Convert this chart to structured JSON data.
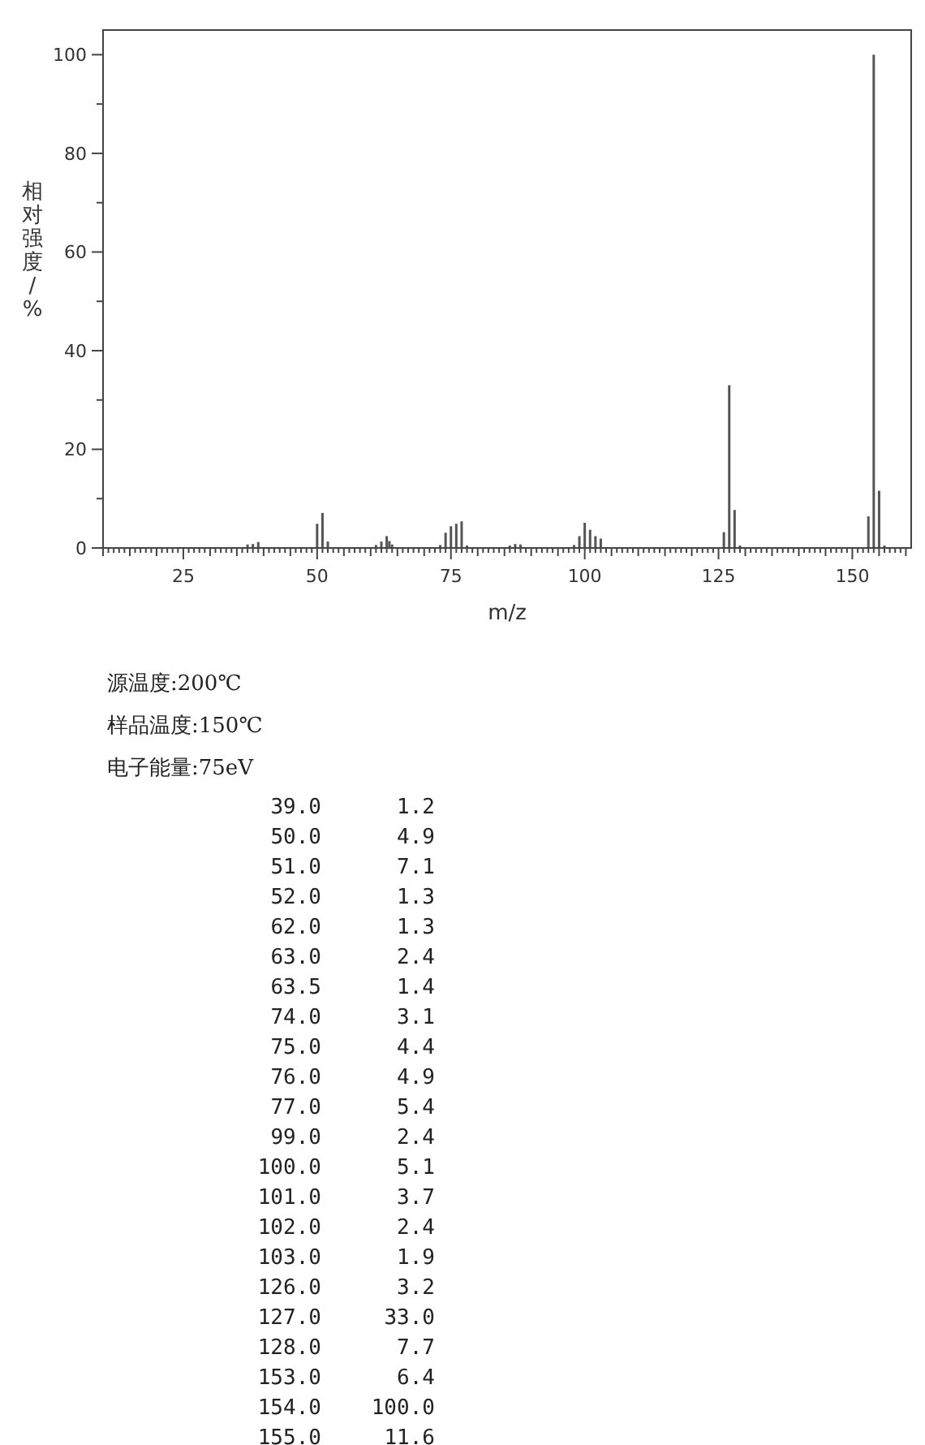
{
  "chart_data": {
    "type": "bar",
    "xlabel": "m/z",
    "ylabel": "相对强度/%",
    "xlim": [
      10,
      161
    ],
    "ylim": [
      0,
      105
    ],
    "xticks": [
      {
        "value": 10,
        "label": null
      },
      {
        "value": 11,
        "label": null
      },
      {
        "value": 12,
        "label": null
      },
      {
        "value": 13,
        "label": null
      },
      {
        "value": 14,
        "label": null
      },
      {
        "value": 15,
        "label": null
      },
      {
        "value": 16,
        "label": null
      },
      {
        "value": 17,
        "label": null
      },
      {
        "value": 18,
        "label": null
      },
      {
        "value": 19,
        "label": null
      },
      {
        "value": 20,
        "label": null
      },
      {
        "value": 21,
        "label": null
      },
      {
        "value": 22,
        "label": null
      },
      {
        "value": 23,
        "label": null
      },
      {
        "value": 24,
        "label": null
      },
      25,
      {
        "value": 26,
        "label": null
      },
      {
        "value": 27,
        "label": null
      },
      {
        "value": 28,
        "label": null
      },
      {
        "value": 29,
        "label": null
      },
      {
        "value": 30,
        "label": null
      },
      {
        "value": 31,
        "label": null
      },
      {
        "value": 32,
        "label": null
      },
      {
        "value": 33,
        "label": null
      },
      {
        "value": 34,
        "label": null
      },
      {
        "value": 35,
        "label": null
      },
      {
        "value": 36,
        "label": null
      },
      {
        "value": 37,
        "label": null
      },
      {
        "value": 38,
        "label": null
      },
      {
        "value": 39,
        "label": null
      },
      {
        "value": 40,
        "label": null
      },
      {
        "value": 41,
        "label": null
      },
      {
        "value": 42,
        "label": null
      },
      {
        "value": 43,
        "label": null
      },
      {
        "value": 44,
        "label": null
      },
      {
        "value": 45,
        "label": null
      },
      {
        "value": 46,
        "label": null
      },
      {
        "value": 47,
        "label": null
      },
      {
        "value": 48,
        "label": null
      },
      {
        "value": 49,
        "label": null
      },
      50,
      {
        "value": 51,
        "label": null
      },
      {
        "value": 52,
        "label": null
      },
      {
        "value": 53,
        "label": null
      },
      {
        "value": 54,
        "label": null
      },
      {
        "value": 55,
        "label": null
      },
      {
        "value": 56,
        "label": null
      },
      {
        "value": 57,
        "label": null
      },
      {
        "value": 58,
        "label": null
      },
      {
        "value": 59,
        "label": null
      },
      {
        "value": 60,
        "label": null
      },
      {
        "value": 61,
        "label": null
      },
      {
        "value": 62,
        "label": null
      },
      {
        "value": 63,
        "label": null
      },
      {
        "value": 64,
        "label": null
      },
      {
        "value": 65,
        "label": null
      },
      {
        "value": 66,
        "label": null
      },
      {
        "value": 67,
        "label": null
      },
      {
        "value": 68,
        "label": null
      },
      {
        "value": 69,
        "label": null
      },
      {
        "value": 70,
        "label": null
      },
      {
        "value": 71,
        "label": null
      },
      {
        "value": 72,
        "label": null
      },
      {
        "value": 73,
        "label": null
      },
      {
        "value": 74,
        "label": null
      },
      75,
      {
        "value": 76,
        "label": null
      },
      {
        "value": 77,
        "label": null
      },
      {
        "value": 78,
        "label": null
      },
      {
        "value": 79,
        "label": null
      },
      {
        "value": 80,
        "label": null
      },
      {
        "value": 81,
        "label": null
      },
      {
        "value": 82,
        "label": null
      },
      {
        "value": 83,
        "label": null
      },
      {
        "value": 84,
        "label": null
      },
      {
        "value": 85,
        "label": null
      },
      {
        "value": 86,
        "label": null
      },
      {
        "value": 87,
        "label": null
      },
      {
        "value": 88,
        "label": null
      },
      {
        "value": 89,
        "label": null
      },
      {
        "value": 90,
        "label": null
      },
      {
        "value": 91,
        "label": null
      },
      {
        "value": 92,
        "label": null
      },
      {
        "value": 93,
        "label": null
      },
      {
        "value": 94,
        "label": null
      },
      {
        "value": 95,
        "label": null
      },
      {
        "value": 96,
        "label": null
      },
      {
        "value": 97,
        "label": null
      },
      {
        "value": 98,
        "label": null
      },
      {
        "value": 99,
        "label": null
      },
      100,
      {
        "value": 101,
        "label": null
      },
      {
        "value": 102,
        "label": null
      },
      {
        "value": 103,
        "label": null
      },
      {
        "value": 104,
        "label": null
      },
      {
        "value": 105,
        "label": null
      },
      {
        "value": 106,
        "label": null
      },
      {
        "value": 107,
        "label": null
      },
      {
        "value": 108,
        "label": null
      },
      {
        "value": 109,
        "label": null
      },
      {
        "value": 110,
        "label": null
      },
      {
        "value": 111,
        "label": null
      },
      {
        "value": 112,
        "label": null
      },
      {
        "value": 113,
        "label": null
      },
      {
        "value": 114,
        "label": null
      },
      {
        "value": 115,
        "label": null
      },
      {
        "value": 116,
        "label": null
      },
      {
        "value": 117,
        "label": null
      },
      {
        "value": 118,
        "label": null
      },
      {
        "value": 119,
        "label": null
      },
      {
        "value": 120,
        "label": null
      },
      {
        "value": 121,
        "label": null
      },
      {
        "value": 122,
        "label": null
      },
      {
        "value": 123,
        "label": null
      },
      {
        "value": 124,
        "label": null
      },
      125,
      {
        "value": 126,
        "label": null
      },
      {
        "value": 127,
        "label": null
      },
      {
        "value": 128,
        "label": null
      },
      {
        "value": 129,
        "label": null
      },
      {
        "value": 130,
        "label": null
      },
      {
        "value": 131,
        "label": null
      },
      {
        "value": 132,
        "label": null
      },
      {
        "value": 133,
        "label": null
      },
      {
        "value": 134,
        "label": null
      },
      {
        "value": 135,
        "label": null
      },
      {
        "value": 136,
        "label": null
      },
      {
        "value": 137,
        "label": null
      },
      {
        "value": 138,
        "label": null
      },
      {
        "value": 139,
        "label": null
      },
      {
        "value": 140,
        "label": null
      },
      {
        "value": 141,
        "label": null
      },
      {
        "value": 142,
        "label": null
      },
      {
        "value": 143,
        "label": null
      },
      {
        "value": 144,
        "label": null
      },
      {
        "value": 145,
        "label": null
      },
      {
        "value": 146,
        "label": null
      },
      {
        "value": 147,
        "label": null
      },
      {
        "value": 148,
        "label": null
      },
      {
        "value": 149,
        "label": null
      },
      150,
      {
        "value": 151,
        "label": null
      },
      {
        "value": 152,
        "label": null
      },
      {
        "value": 153,
        "label": null
      },
      {
        "value": 154,
        "label": null
      },
      {
        "value": 155,
        "label": null
      },
      {
        "value": 156,
        "label": null
      },
      {
        "value": 157,
        "label": null
      },
      {
        "value": 158,
        "label": null
      },
      {
        "value": 159,
        "label": null
      },
      {
        "value": 160,
        "label": null
      }
    ],
    "yticks": [
      0,
      {
        "value": 10,
        "label": null
      },
      20,
      {
        "value": 30,
        "label": null
      },
      40,
      {
        "value": 50,
        "label": null
      },
      60,
      {
        "value": 70,
        "label": null
      },
      80,
      {
        "value": 90,
        "label": null
      },
      100
    ],
    "grid": false,
    "series": [
      {
        "color": "#555555",
        "x": [
          37,
          38,
          39,
          50,
          51,
          52,
          61,
          62,
          63,
          63.5,
          64,
          73,
          74,
          75,
          76,
          77,
          78,
          86,
          87,
          88,
          98,
          99,
          100,
          101,
          102,
          103,
          126,
          127,
          128,
          129,
          153,
          154,
          155,
          156
        ],
        "values": [
          0.7,
          0.8,
          1.2,
          4.9,
          7.1,
          1.3,
          0.6,
          1.3,
          2.4,
          1.4,
          0.7,
          0.6,
          3.1,
          4.4,
          4.9,
          5.4,
          0.5,
          0.5,
          0.8,
          0.7,
          0.6,
          2.4,
          5.1,
          3.7,
          2.4,
          1.9,
          3.2,
          33.0,
          7.7,
          0.5,
          6.4,
          100.0,
          11.6,
          0.5
        ],
        "name": null
      }
    ],
    "annotations": [
      "源温度:200℃",
      "样品温度:150℃",
      "电子能量:75eV",
      "39.0",
      "1.2",
      "50.0",
      "4.9",
      "51.0",
      "7.1",
      "52.0",
      "1.3",
      "62.0",
      "1.3",
      "63.0",
      "2.4",
      "63.5",
      "1.4",
      "74.0",
      "3.1",
      "75.0",
      "4.4",
      "76.0",
      "4.9",
      "77.0",
      "5.4",
      "99.0",
      "2.4",
      "100.0",
      "5.1",
      "101.0",
      "3.7",
      "102.0",
      "2.4",
      "103.0",
      "1.9",
      "126.0",
      "3.2",
      "127.0",
      "33.0",
      "128.0",
      "7.7",
      "153.0",
      "6.4",
      "154.0",
      "100.0",
      "155.0",
      "11.6"
    ]
  }
}
